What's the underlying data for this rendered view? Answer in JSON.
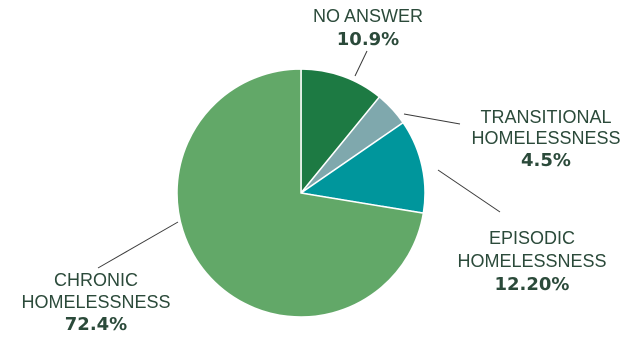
{
  "chart_data": {
    "type": "pie",
    "slices": [
      {
        "label_lines": [
          "NO ANSWER"
        ],
        "value_text": "10.9%",
        "value": 10.9,
        "color": "#1d7a43"
      },
      {
        "label_lines": [
          "TRANSITIONAL",
          "HOMELESSNESS"
        ],
        "value_text": "4.5%",
        "value": 4.5,
        "color": "#7fa8ad"
      },
      {
        "label_lines": [
          "EPISODIC",
          "HOMELESSNESS"
        ],
        "value_text": "12.20%",
        "value": 12.2,
        "color": "#00969c"
      },
      {
        "label_lines": [
          "CHRONIC",
          "HOMELESSNESS"
        ],
        "value_text": "72.4%",
        "value": 72.4,
        "color": "#62a868"
      }
    ],
    "start_angle": "top",
    "direction": "clockwise",
    "slice_border_color": "#ffffff"
  }
}
